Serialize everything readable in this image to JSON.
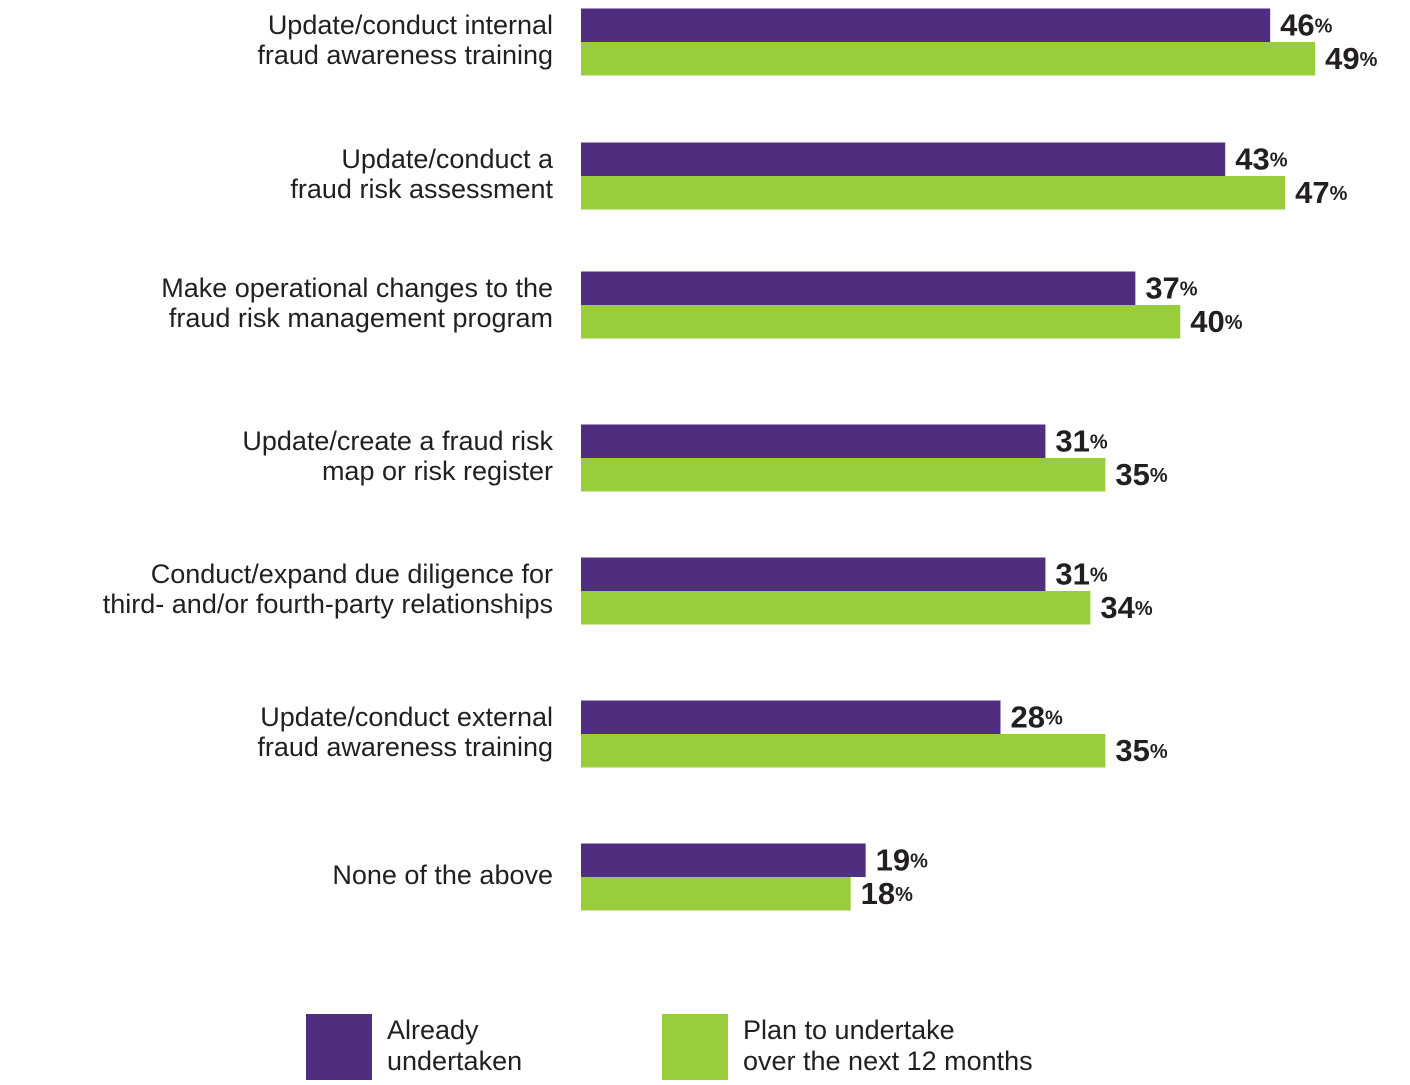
{
  "chart_data": {
    "type": "bar",
    "orientation": "horizontal",
    "categories": [
      [
        "Update/conduct internal",
        "fraud awareness training"
      ],
      [
        "Update/conduct a",
        "fraud risk assessment"
      ],
      [
        "Make operational changes to the",
        "fraud risk management program"
      ],
      [
        "Update/create a fraud risk",
        "map or risk register"
      ],
      [
        "Conduct/expand due diligence for",
        "third- and/or fourth-party relationships"
      ],
      [
        "Update/conduct external",
        "fraud awareness training"
      ],
      [
        "None of the above"
      ]
    ],
    "series": [
      {
        "name": "Already undertaken",
        "color": "#4f2d7f",
        "values": [
          46,
          43,
          37,
          31,
          31,
          28,
          19
        ],
        "value_labels": [
          "46%",
          "43%",
          "37%",
          "31%",
          "31%",
          "28%",
          "19%"
        ]
      },
      {
        "name": "Plan to undertake over the next 12 months",
        "color": "#9acd3c",
        "values": [
          49,
          47,
          40,
          35,
          34,
          35,
          18
        ],
        "value_labels": [
          "49%",
          "47%",
          "40%",
          "35%",
          "34%",
          "35%",
          "18%"
        ]
      }
    ],
    "xlim": [
      0,
      55
    ]
  }
}
